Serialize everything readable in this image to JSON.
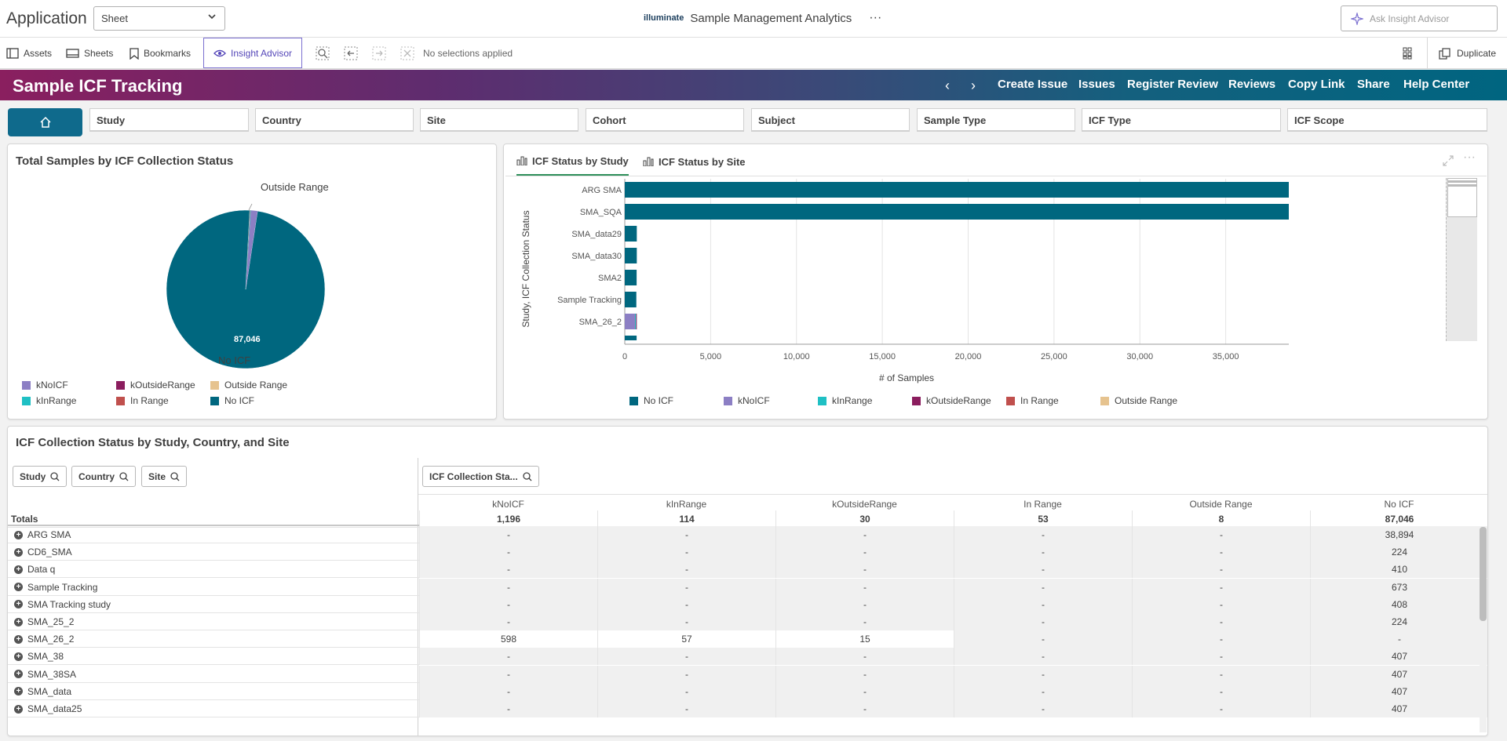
{
  "topbar": {
    "app_title": "Application",
    "sheet_select": "Sheet",
    "brand_logo": "illuminate",
    "brand_name": "Sample Management Analytics",
    "more": "···",
    "ask_placeholder": "Ask Insight Advisor"
  },
  "toolbar": {
    "assets": "Assets",
    "sheets": "Sheets",
    "bookmarks": "Bookmarks",
    "insight_advisor": "Insight Advisor",
    "no_selections": "No selections applied",
    "duplicate": "Duplicate"
  },
  "banner": {
    "title": "Sample ICF Tracking",
    "links": [
      "Create Issue",
      "Issues",
      "Register Review",
      "Reviews",
      "Copy Link",
      "Share",
      "Help Center"
    ]
  },
  "filters": [
    "Study",
    "Country",
    "Site",
    "Cohort",
    "Subject",
    "Sample Type",
    "ICF Type",
    "ICF Scope"
  ],
  "colors": {
    "no_icf": "#00677f",
    "knoicf": "#8c7fc4",
    "kinrange": "#1fc0c4",
    "koutsiderange": "#8b1d5e",
    "in_range": "#c0504d",
    "outside_range": "#e6c38f"
  },
  "pie_panel": {
    "title": "Total Samples by ICF Collection Status",
    "label_outside": "Outside Range",
    "label_value": "87,046",
    "label_noicf": "No ICF",
    "legend": [
      "kNoICF",
      "kOutsideRange",
      "Outside Range",
      "kInRange",
      "In Range",
      "No ICF"
    ]
  },
  "bar_panel": {
    "tabs": [
      "ICF Status by Study",
      "ICF Status by Site"
    ],
    "ylabel": "Study, ICF Collection Status",
    "xlabel": "# of Samples",
    "legend": [
      "No ICF",
      "kNoICF",
      "kInRange",
      "kOutsideRange",
      "In Range",
      "Outside Range"
    ]
  },
  "chart_data": [
    {
      "type": "pie",
      "title": "Total Samples by ICF Collection Status",
      "slices": [
        {
          "name": "No ICF",
          "value": 87046
        },
        {
          "name": "kNoICF",
          "value": 1196
        },
        {
          "name": "kInRange",
          "value": 114
        },
        {
          "name": "kOutsideRange",
          "value": 30
        },
        {
          "name": "In Range",
          "value": 53
        },
        {
          "name": "Outside Range",
          "value": 8
        }
      ]
    },
    {
      "type": "bar",
      "orientation": "horizontal",
      "stacked": true,
      "categories": [
        "ARG SMA",
        "SMA_SQA",
        "SMA_data29",
        "SMA_data30",
        "SMA2",
        "Sample Tracking",
        "SMA_26_2"
      ],
      "series": [
        {
          "name": "No ICF",
          "values": [
            38894,
            38900,
            700,
            700,
            690,
            673,
            0
          ]
        },
        {
          "name": "kNoICF",
          "values": [
            0,
            0,
            0,
            0,
            0,
            0,
            598
          ]
        },
        {
          "name": "kInRange",
          "values": [
            0,
            0,
            0,
            0,
            0,
            0,
            57
          ]
        },
        {
          "name": "kOutsideRange",
          "values": [
            0,
            0,
            0,
            0,
            0,
            0,
            15
          ]
        },
        {
          "name": "In Range",
          "values": [
            0,
            0,
            0,
            0,
            0,
            0,
            0
          ]
        },
        {
          "name": "Outside Range",
          "values": [
            0,
            0,
            0,
            0,
            0,
            0,
            0
          ]
        }
      ],
      "xticks": [
        "0",
        "5,000",
        "10,000",
        "15,000",
        "20,000",
        "25,000",
        "30,000",
        "35,000",
        "40,000"
      ],
      "xlim": [
        0,
        40000
      ],
      "xlabel": "# of Samples",
      "ylabel": "Study, ICF Collection Status",
      "grid": true,
      "legend": "bottom"
    }
  ],
  "table": {
    "title": "ICF Collection Status by Study, Country, and Site",
    "dim_filters": [
      "Study",
      "Country",
      "Site"
    ],
    "measure_filter": "ICF Collection Sta...",
    "columns": [
      "kNoICF",
      "kInRange",
      "kOutsideRange",
      "In Range",
      "Outside Range",
      "No ICF"
    ],
    "totals_label": "Totals",
    "totals": [
      "1,196",
      "114",
      "30",
      "53",
      "8",
      "87,046"
    ],
    "rows": [
      {
        "name": "ARG SMA",
        "values": [
          "-",
          "-",
          "-",
          "-",
          "-",
          "38,894"
        ]
      },
      {
        "name": "CD6_SMA",
        "values": [
          "-",
          "-",
          "-",
          "-",
          "-",
          "224"
        ]
      },
      {
        "name": "Data q",
        "values": [
          "-",
          "-",
          "-",
          "-",
          "-",
          "410"
        ]
      },
      {
        "name": "Sample Tracking",
        "values": [
          "-",
          "-",
          "-",
          "-",
          "-",
          "673"
        ]
      },
      {
        "name": "SMA Tracking study",
        "values": [
          "-",
          "-",
          "-",
          "-",
          "-",
          "408"
        ]
      },
      {
        "name": "SMA_25_2",
        "values": [
          "-",
          "-",
          "-",
          "-",
          "-",
          "224"
        ]
      },
      {
        "name": "SMA_26_2",
        "values": [
          "598",
          "57",
          "15",
          "-",
          "-",
          "-"
        ]
      },
      {
        "name": "SMA_38",
        "values": [
          "-",
          "-",
          "-",
          "-",
          "-",
          "407"
        ]
      },
      {
        "name": "SMA_38SA",
        "values": [
          "-",
          "-",
          "-",
          "-",
          "-",
          "407"
        ]
      },
      {
        "name": "SMA_data",
        "values": [
          "-",
          "-",
          "-",
          "-",
          "-",
          "407"
        ]
      },
      {
        "name": "SMA_data25",
        "values": [
          "-",
          "-",
          "-",
          "-",
          "-",
          "407"
        ]
      }
    ]
  }
}
